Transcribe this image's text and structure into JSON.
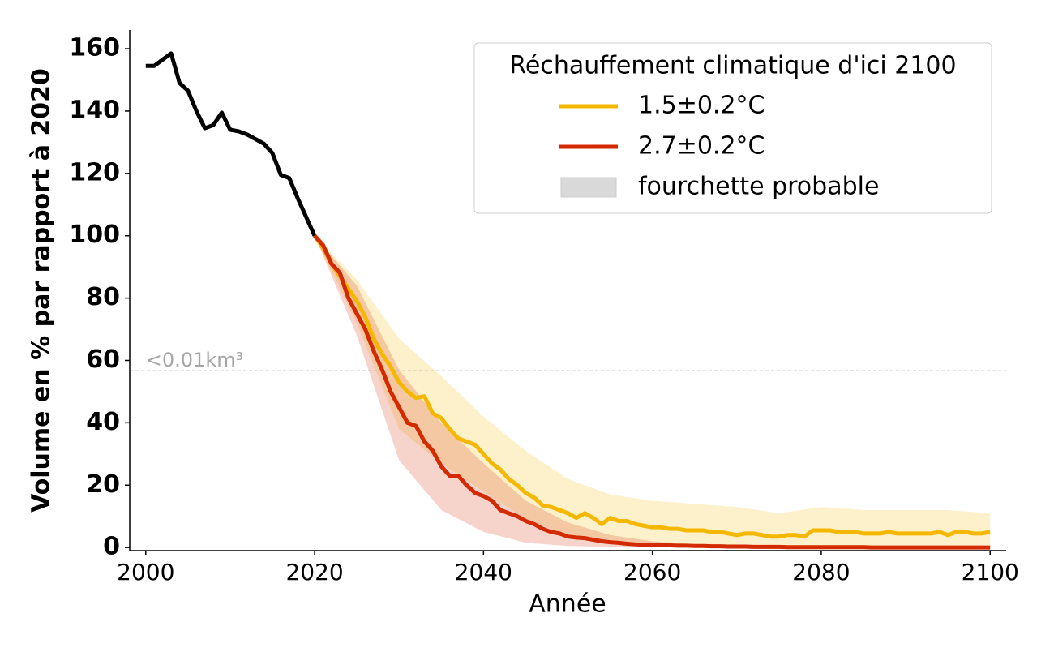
{
  "chart_data": {
    "type": "line",
    "xlabel": "Année",
    "ylabel": "Volume en % par rapport à 2020",
    "xlim": [
      1998.1,
      2101.9
    ],
    "ylim": [
      -1,
      166
    ],
    "xticks": [
      2000,
      2020,
      2040,
      2060,
      2080,
      2100
    ],
    "yticks": [
      0,
      20,
      40,
      60,
      80,
      100,
      120,
      140,
      160
    ],
    "hline": 56.7,
    "hline_color": "#bbbbbb",
    "annotation": "<0.01km³",
    "legend": {
      "title": "Réchauffement climatique d'ici 2100",
      "position": "upper right",
      "band_label": "fourchette probable",
      "band_color": "#d9d9d9"
    },
    "series": [
      {
        "color": "#000000",
        "x": [
          2000,
          2001,
          2002,
          2003,
          2004,
          2005,
          2006,
          2007,
          2008,
          2009,
          2010,
          2011,
          2012,
          2013,
          2014,
          2015,
          2016,
          2017,
          2018,
          2019,
          2020
        ],
        "values": [
          154.5,
          154.5,
          156.5,
          158.5,
          149,
          146.5,
          140,
          134.5,
          135.5,
          139.5,
          134,
          133.5,
          132.5,
          131,
          129.5,
          126.5,
          119.5,
          118.5,
          112,
          106,
          100
        ]
      },
      {
        "name": "1.5±0.2°C",
        "color": "#f5b800",
        "x": [
          2020,
          2021,
          2022,
          2023,
          2024,
          2025,
          2026,
          2027,
          2028,
          2029,
          2030,
          2031,
          2032,
          2033,
          2034,
          2035,
          2036,
          2037,
          2038,
          2039,
          2040,
          2041,
          2042,
          2043,
          2044,
          2045,
          2046,
          2047,
          2048,
          2049,
          2050,
          2051,
          2052,
          2053,
          2054,
          2055,
          2056,
          2057,
          2058,
          2059,
          2060,
          2061,
          2062,
          2063,
          2064,
          2065,
          2066,
          2067,
          2068,
          2069,
          2070,
          2071,
          2072,
          2073,
          2074,
          2075,
          2076,
          2077,
          2078,
          2079,
          2080,
          2081,
          2082,
          2083,
          2084,
          2085,
          2086,
          2087,
          2088,
          2089,
          2090,
          2091,
          2092,
          2093,
          2094,
          2095,
          2096,
          2097,
          2098,
          2099,
          2100
        ],
        "values": [
          100,
          96,
          91,
          87,
          83,
          79,
          74,
          67,
          62,
          58,
          53,
          50,
          48,
          48.5,
          43,
          41.5,
          38,
          35,
          34,
          33,
          30,
          27,
          25,
          22,
          20,
          17.5,
          16,
          13.5,
          13,
          12,
          11,
          9.5,
          11,
          9.5,
          7.5,
          9.5,
          8.5,
          8.5,
          7.5,
          7,
          6.5,
          6.5,
          6,
          6,
          5.5,
          5.5,
          5.5,
          5,
          5,
          4.5,
          4,
          4.5,
          4.5,
          4,
          3.5,
          3.5,
          4,
          4,
          3.5,
          5.5,
          5.5,
          5.5,
          5,
          5,
          5,
          4.5,
          4.5,
          4.5,
          5,
          4.5,
          4.5,
          4.5,
          4.5,
          4.5,
          5,
          4,
          5,
          5,
          4.5,
          4.5,
          5
        ],
        "band_x": [
          2020,
          2025,
          2030,
          2035,
          2040,
          2045,
          2050,
          2055,
          2060,
          2065,
          2070,
          2075,
          2080,
          2085,
          2090,
          2095,
          2100
        ],
        "band_lower": [
          100,
          72,
          38,
          27,
          18,
          9,
          4,
          2,
          1,
          0.5,
          0.3,
          0.2,
          0.1,
          0.1,
          0.1,
          0.1,
          0.1
        ],
        "band_upper": [
          100,
          86,
          67,
          55,
          42,
          31,
          22,
          17,
          15,
          14,
          13,
          11,
          13,
          12,
          12,
          12,
          11
        ]
      },
      {
        "name": "2.7±0.2°C",
        "color": "#d42a00",
        "x": [
          2020,
          2021,
          2022,
          2023,
          2024,
          2025,
          2026,
          2027,
          2028,
          2029,
          2030,
          2031,
          2032,
          2033,
          2034,
          2035,
          2036,
          2037,
          2038,
          2039,
          2040,
          2041,
          2042,
          2043,
          2044,
          2045,
          2046,
          2047,
          2048,
          2049,
          2050,
          2051,
          2052,
          2053,
          2054,
          2055,
          2056,
          2057,
          2058,
          2059,
          2060,
          2061,
          2062,
          2063,
          2064,
          2065,
          2066,
          2067,
          2068,
          2069,
          2070,
          2071,
          2072,
          2073,
          2074,
          2075,
          2076,
          2077,
          2078,
          2079,
          2080,
          2081,
          2082,
          2083,
          2084,
          2085,
          2086,
          2087,
          2088,
          2089,
          2090,
          2091,
          2092,
          2093,
          2094,
          2095,
          2096,
          2097,
          2098,
          2099,
          2100
        ],
        "values": [
          100,
          97,
          91,
          88,
          80,
          75,
          70,
          63,
          57,
          50,
          45,
          40,
          39,
          34,
          31,
          26,
          23,
          23,
          20,
          17.5,
          16.5,
          15,
          12,
          11,
          10,
          8.5,
          7.5,
          6,
          5,
          4.5,
          3.5,
          3.2,
          3,
          2.5,
          2,
          1.7,
          1.5,
          1.2,
          1,
          0.9,
          0.8,
          0.7,
          0.7,
          0.6,
          0.6,
          0.5,
          0.5,
          0.4,
          0.4,
          0.3,
          0.3,
          0.3,
          0.2,
          0.2,
          0.2,
          0.2,
          0.1,
          0.1,
          0.1,
          0.1,
          0.1,
          0.1,
          0.1,
          0.1,
          0.1,
          0.1,
          0,
          0,
          0,
          0,
          0,
          0,
          0,
          0,
          0,
          0,
          0,
          0,
          0,
          0,
          0
        ],
        "band_x": [
          2020,
          2025,
          2030,
          2035,
          2040,
          2045,
          2050,
          2055,
          2060,
          2065,
          2070,
          2075,
          2080,
          2085,
          2090,
          2095,
          2100
        ],
        "band_lower": [
          100,
          68,
          28,
          12,
          5,
          1.5,
          0.5,
          0.2,
          0.1,
          0,
          0,
          0,
          0,
          0,
          0,
          0,
          0
        ],
        "band_upper": [
          100,
          84,
          57,
          40,
          27,
          15,
          8,
          4,
          2,
          1,
          0.5,
          0.5,
          0.5,
          0.5,
          0.5,
          0.5,
          0.5
        ]
      }
    ]
  }
}
